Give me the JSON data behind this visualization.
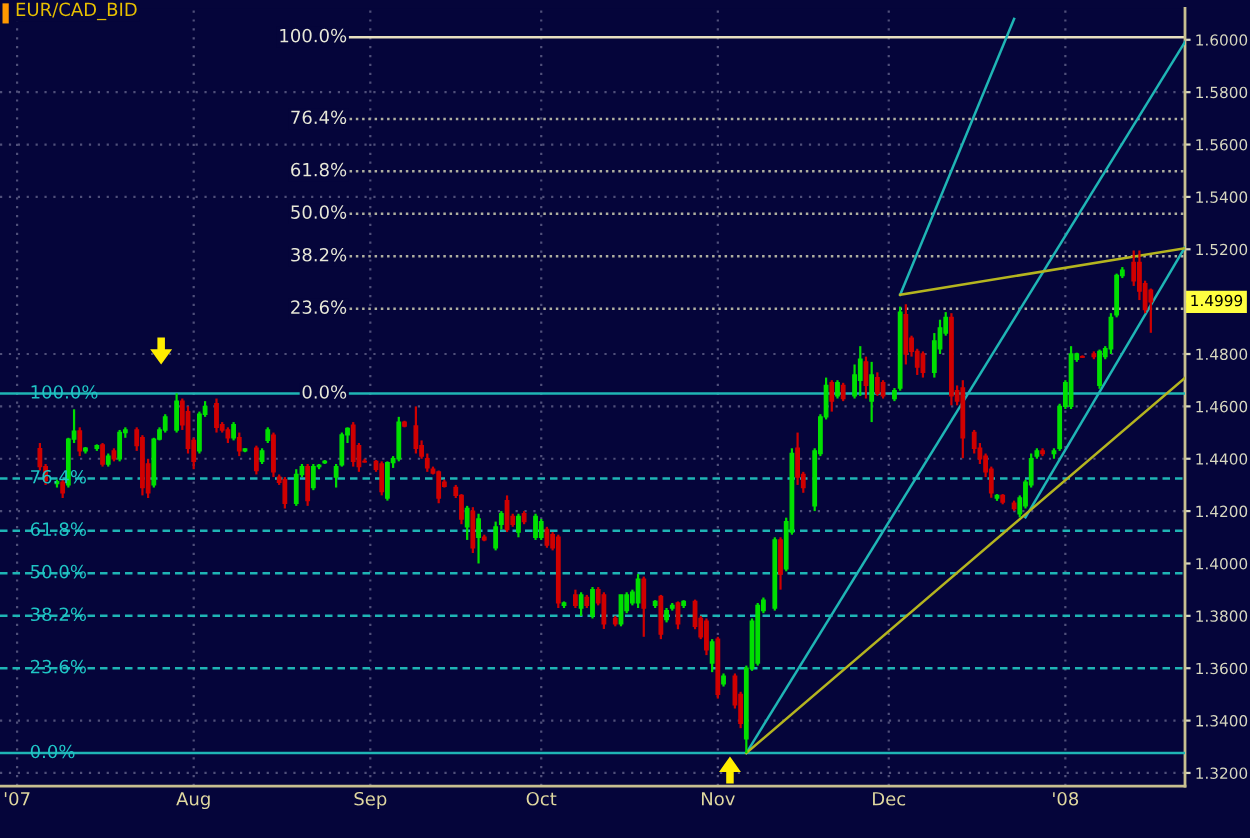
{
  "chart_data": {
    "type": "candlestick",
    "title": "EUR/CAD_BID",
    "x": [
      "2007-07-05",
      "2007-07-06",
      "2007-07-08",
      "2007-07-09",
      "2007-07-10",
      "2007-07-11",
      "2007-07-12",
      "2007-07-13",
      "2007-07-15",
      "2007-07-16",
      "2007-07-17",
      "2007-07-18",
      "2007-07-19",
      "2007-07-20",
      "2007-07-22",
      "2007-07-23",
      "2007-07-24",
      "2007-07-25",
      "2007-07-26",
      "2007-07-27",
      "2007-07-29",
      "2007-07-30",
      "2007-07-31",
      "2007-08-01",
      "2007-08-02",
      "2007-08-03",
      "2007-08-05",
      "2007-08-06",
      "2007-08-07",
      "2007-08-08",
      "2007-08-09",
      "2007-08-10",
      "2007-08-12",
      "2007-08-13",
      "2007-08-14",
      "2007-08-15",
      "2007-08-16",
      "2007-08-17",
      "2007-08-19",
      "2007-08-20",
      "2007-08-21",
      "2007-08-22",
      "2007-08-23",
      "2007-08-24",
      "2007-08-26",
      "2007-08-27",
      "2007-08-28",
      "2007-08-29",
      "2007-08-30",
      "2007-08-31",
      "2007-09-02",
      "2007-09-03",
      "2007-09-04",
      "2007-09-05",
      "2007-09-06",
      "2007-09-07",
      "2007-09-09",
      "2007-09-10",
      "2007-09-11",
      "2007-09-12",
      "2007-09-13",
      "2007-09-14",
      "2007-09-16",
      "2007-09-17",
      "2007-09-18",
      "2007-09-19",
      "2007-09-20",
      "2007-09-21",
      "2007-09-23",
      "2007-09-24",
      "2007-09-25",
      "2007-09-26",
      "2007-09-27",
      "2007-09-28",
      "2007-09-30",
      "2007-10-01",
      "2007-10-02",
      "2007-10-03",
      "2007-10-04",
      "2007-10-05",
      "2007-10-07",
      "2007-10-08",
      "2007-10-09",
      "2007-10-10",
      "2007-10-11",
      "2007-10-12",
      "2007-10-14",
      "2007-10-15",
      "2007-10-16",
      "2007-10-17",
      "2007-10-18",
      "2007-10-19",
      "2007-10-21",
      "2007-10-22",
      "2007-10-23",
      "2007-10-24",
      "2007-10-25",
      "2007-10-26",
      "2007-10-28",
      "2007-10-29",
      "2007-10-30",
      "2007-10-31",
      "2007-11-01",
      "2007-11-02",
      "2007-11-04",
      "2007-11-05",
      "2007-11-06",
      "2007-11-07",
      "2007-11-08",
      "2007-11-09",
      "2007-11-11",
      "2007-11-12",
      "2007-11-13",
      "2007-11-14",
      "2007-11-15",
      "2007-11-16",
      "2007-11-18",
      "2007-11-19",
      "2007-11-20",
      "2007-11-21",
      "2007-11-22",
      "2007-11-23",
      "2007-11-25",
      "2007-11-26",
      "2007-11-27",
      "2007-11-28",
      "2007-11-29",
      "2007-11-30",
      "2007-12-02",
      "2007-12-03",
      "2007-12-04",
      "2007-12-05",
      "2007-12-06",
      "2007-12-07",
      "2007-12-09",
      "2007-12-10",
      "2007-12-11",
      "2007-12-12",
      "2007-12-13",
      "2007-12-14",
      "2007-12-16",
      "2007-12-17",
      "2007-12-18",
      "2007-12-19",
      "2007-12-20",
      "2007-12-21",
      "2007-12-23",
      "2007-12-24",
      "2007-12-25",
      "2007-12-26",
      "2007-12-27",
      "2007-12-28",
      "2007-12-30",
      "2007-12-31",
      "2008-01-01",
      "2008-01-02",
      "2008-01-03",
      "2008-01-04",
      "2008-01-06",
      "2008-01-07",
      "2008-01-08",
      "2008-01-09",
      "2008-01-10",
      "2008-01-11",
      "2008-01-13",
      "2008-01-14",
      "2008-01-15",
      "2008-01-16"
    ],
    "ohlc": [
      [
        1.4438,
        1.446,
        1.4355,
        1.437
      ],
      [
        1.437,
        1.438,
        1.43,
        1.4317
      ],
      [
        1.4305,
        1.432,
        1.429,
        1.4312
      ],
      [
        1.431,
        1.432,
        1.425,
        1.427
      ],
      [
        1.43,
        1.448,
        1.429,
        1.4475
      ],
      [
        1.4475,
        1.4589,
        1.446,
        1.4505
      ],
      [
        1.4506,
        1.452,
        1.441,
        1.443
      ],
      [
        1.443,
        1.4445,
        1.442,
        1.444
      ],
      [
        1.444,
        1.4455,
        1.443,
        1.445
      ],
      [
        1.4453,
        1.446,
        1.437,
        1.438
      ],
      [
        1.438,
        1.442,
        1.437,
        1.441
      ],
      [
        1.443,
        1.444,
        1.439,
        1.44
      ],
      [
        1.44,
        1.451,
        1.439,
        1.45
      ],
      [
        1.45,
        1.452,
        1.448,
        1.451
      ],
      [
        1.451,
        1.452,
        1.443,
        1.445
      ],
      [
        1.448,
        1.449,
        1.426,
        1.429
      ],
      [
        1.438,
        1.44,
        1.425,
        1.427
      ],
      [
        1.43,
        1.448,
        1.429,
        1.4475
      ],
      [
        1.4475,
        1.452,
        1.447,
        1.451
      ],
      [
        1.451,
        1.457,
        1.45,
        1.456
      ],
      [
        1.451,
        1.465,
        1.45,
        1.462
      ],
      [
        1.462,
        1.463,
        1.451,
        1.453
      ],
      [
        1.458,
        1.46,
        1.442,
        1.444
      ],
      [
        1.447,
        1.448,
        1.436,
        1.439
      ],
      [
        1.443,
        1.458,
        1.442,
        1.457
      ],
      [
        1.457,
        1.462,
        1.456,
        1.46
      ],
      [
        1.461,
        1.463,
        1.45,
        1.452
      ],
      [
        1.453,
        1.454,
        1.45,
        1.451
      ],
      [
        1.451,
        1.452,
        1.446,
        1.448
      ],
      [
        1.448,
        1.454,
        1.447,
        1.453
      ],
      [
        1.448,
        1.45,
        1.441,
        1.443
      ],
      [
        1.443,
        1.444,
        1.4425,
        1.4437
      ],
      [
        1.444,
        1.445,
        1.434,
        1.4355
      ],
      [
        1.439,
        1.444,
        1.438,
        1.443
      ],
      [
        1.447,
        1.452,
        1.446,
        1.451
      ],
      [
        1.449,
        1.45,
        1.433,
        1.435
      ],
      [
        1.433,
        1.434,
        1.43,
        1.431
      ],
      [
        1.432,
        1.433,
        1.421,
        1.423
      ],
      [
        1.423,
        1.436,
        1.422,
        1.434
      ],
      [
        1.434,
        1.438,
        1.433,
        1.437
      ],
      [
        1.437,
        1.438,
        1.422,
        1.424
      ],
      [
        1.429,
        1.438,
        1.428,
        1.437
      ],
      [
        1.437,
        1.438,
        1.436,
        1.4375
      ],
      [
        1.4385,
        1.4395,
        1.438,
        1.439
      ],
      [
        1.433,
        1.438,
        1.429,
        1.437
      ],
      [
        1.4377,
        1.45,
        1.437,
        1.4491
      ],
      [
        1.4491,
        1.452,
        1.446,
        1.4516
      ],
      [
        1.4528,
        1.454,
        1.437,
        1.439
      ],
      [
        1.445,
        1.446,
        1.435,
        1.437
      ],
      [
        1.439,
        1.44,
        1.4385,
        1.4388
      ],
      [
        1.439,
        1.4395,
        1.435,
        1.436
      ],
      [
        1.438,
        1.439,
        1.426,
        1.4275
      ],
      [
        1.425,
        1.439,
        1.424,
        1.4385
      ],
      [
        1.4385,
        1.441,
        1.4365,
        1.44
      ],
      [
        1.44,
        1.456,
        1.439,
        1.454
      ],
      [
        1.454,
        1.4545,
        1.452,
        1.4525
      ],
      [
        1.4525,
        1.46,
        1.442,
        1.444
      ],
      [
        1.445,
        1.447,
        1.44,
        1.441
      ],
      [
        1.44,
        1.442,
        1.435,
        1.4365
      ],
      [
        1.436,
        1.437,
        1.434,
        1.4345
      ],
      [
        1.435,
        1.4355,
        1.423,
        1.425
      ],
      [
        1.431,
        1.432,
        1.429,
        1.4295
      ],
      [
        1.429,
        1.43,
        1.425,
        1.426
      ],
      [
        1.426,
        1.4265,
        1.415,
        1.417
      ],
      [
        1.414,
        1.422,
        1.409,
        1.421
      ],
      [
        1.42,
        1.4215,
        1.404,
        1.406
      ],
      [
        1.41,
        1.419,
        1.4,
        1.417
      ],
      [
        1.41,
        1.411,
        1.4085,
        1.409
      ],
      [
        1.406,
        1.416,
        1.405,
        1.414
      ],
      [
        1.415,
        1.42,
        1.413,
        1.419
      ],
      [
        1.424,
        1.426,
        1.412,
        1.413
      ],
      [
        1.418,
        1.419,
        1.414,
        1.415
      ],
      [
        1.412,
        1.419,
        1.41,
        1.418
      ],
      [
        1.419,
        1.42,
        1.415,
        1.416
      ],
      [
        1.41,
        1.419,
        1.409,
        1.418
      ],
      [
        1.41,
        1.417,
        1.409,
        1.416
      ],
      [
        1.413,
        1.414,
        1.406,
        1.407
      ],
      [
        1.411,
        1.412,
        1.405,
        1.406
      ],
      [
        1.41,
        1.411,
        1.383,
        1.385
      ],
      [
        1.384,
        1.3855,
        1.383,
        1.3849
      ],
      [
        1.388,
        1.39,
        1.383,
        1.384
      ],
      [
        1.383,
        1.389,
        1.38,
        1.388
      ],
      [
        1.387,
        1.388,
        1.383,
        1.384
      ],
      [
        1.38,
        1.391,
        1.379,
        1.39
      ],
      [
        1.39,
        1.391,
        1.384,
        1.385
      ],
      [
        1.388,
        1.389,
        1.375,
        1.377
      ],
      [
        1.379,
        1.38,
        1.376,
        1.377
      ],
      [
        1.377,
        1.388,
        1.376,
        1.388
      ],
      [
        1.382,
        1.389,
        1.381,
        1.388
      ],
      [
        1.385,
        1.39,
        1.384,
        1.389
      ],
      [
        1.385,
        1.396,
        1.383,
        1.394
      ],
      [
        1.394,
        1.395,
        1.372,
        1.383
      ],
      [
        1.384,
        1.386,
        1.383,
        1.3855
      ],
      [
        1.3874,
        1.388,
        1.3711,
        1.373
      ],
      [
        1.3786,
        1.383,
        1.3775,
        1.382
      ],
      [
        1.383,
        1.3849,
        1.382,
        1.384
      ],
      [
        1.3849,
        1.3855,
        1.3749,
        1.377
      ],
      [
        1.384,
        1.386,
        1.383,
        1.3855
      ],
      [
        1.3855,
        1.3862,
        1.3749,
        1.376
      ],
      [
        1.379,
        1.38,
        1.3711,
        1.372
      ],
      [
        1.378,
        1.379,
        1.365,
        1.367
      ],
      [
        1.362,
        1.3711,
        1.3585,
        1.37
      ],
      [
        1.3711,
        1.372,
        1.3484,
        1.35
      ],
      [
        1.354,
        1.358,
        1.353,
        1.357
      ],
      [
        1.357,
        1.358,
        1.3446,
        1.346
      ],
      [
        1.35,
        1.351,
        1.3371,
        1.339
      ],
      [
        1.333,
        1.361,
        1.3276,
        1.36
      ],
      [
        1.36,
        1.379,
        1.359,
        1.378
      ],
      [
        1.362,
        1.3849,
        1.361,
        1.384
      ],
      [
        1.382,
        1.387,
        1.381,
        1.386
      ],
      [
        1.383,
        1.41,
        1.382,
        1.409
      ],
      [
        1.409,
        1.41,
        1.39,
        1.396
      ],
      [
        1.398,
        1.4175,
        1.397,
        1.416
      ],
      [
        1.412,
        1.444,
        1.411,
        1.442
      ],
      [
        1.444,
        1.45,
        1.43,
        1.433
      ],
      [
        1.434,
        1.435,
        1.427,
        1.429
      ],
      [
        1.422,
        1.444,
        1.42,
        1.443
      ],
      [
        1.442,
        1.457,
        1.441,
        1.456
      ],
      [
        1.456,
        1.471,
        1.455,
        1.468
      ],
      [
        1.469,
        1.47,
        1.458,
        1.462
      ],
      [
        1.464,
        1.47,
        1.463,
        1.469
      ],
      [
        1.468,
        1.469,
        1.462,
        1.463
      ],
      [
        1.464,
        1.476,
        1.463,
        1.472
      ],
      [
        1.47,
        1.483,
        1.464,
        1.478
      ],
      [
        1.477,
        1.479,
        1.463,
        1.468
      ],
      [
        1.462,
        1.477,
        1.454,
        1.472
      ],
      [
        1.471,
        1.473,
        1.464,
        1.465
      ],
      [
        1.469,
        1.47,
        1.463,
        1.464
      ],
      [
        1.463,
        1.467,
        1.462,
        1.466
      ],
      [
        1.467,
        1.4981,
        1.466,
        1.496
      ],
      [
        1.495,
        1.499,
        1.476,
        1.48
      ],
      [
        1.486,
        1.487,
        1.479,
        1.481
      ],
      [
        1.481,
        1.482,
        1.472,
        1.475
      ],
      [
        1.48,
        1.481,
        1.471,
        1.473
      ],
      [
        1.473,
        1.488,
        1.471,
        1.485
      ],
      [
        1.482,
        1.4931,
        1.48,
        1.49
      ],
      [
        1.488,
        1.496,
        1.487,
        1.494
      ],
      [
        1.494,
        1.4956,
        1.4604,
        1.464
      ],
      [
        1.466,
        1.468,
        1.4604,
        1.462
      ],
      [
        1.467,
        1.47,
        1.4402,
        1.448
      ],
      [
        1.45,
        1.451,
        1.442,
        1.444
      ],
      [
        1.444,
        1.446,
        1.438,
        1.44
      ],
      [
        1.441,
        1.442,
        1.433,
        1.435
      ],
      [
        1.436,
        1.437,
        1.4251,
        1.427
      ],
      [
        1.425,
        1.4265,
        1.4239,
        1.426
      ],
      [
        1.426,
        1.4265,
        1.4226,
        1.4235
      ],
      [
        1.423,
        1.424,
        1.4201,
        1.421
      ],
      [
        1.419,
        1.426,
        1.4176,
        1.425
      ],
      [
        1.422,
        1.432,
        1.421,
        1.431
      ],
      [
        1.43,
        1.442,
        1.429,
        1.44
      ],
      [
        1.441,
        1.444,
        1.44,
        1.443
      ],
      [
        1.443,
        1.444,
        1.441,
        1.442
      ],
      [
        1.442,
        1.444,
        1.44,
        1.443
      ],
      [
        1.444,
        1.461,
        1.443,
        1.46
      ],
      [
        1.46,
        1.47,
        1.459,
        1.469
      ],
      [
        1.46,
        1.483,
        1.459,
        1.48
      ],
      [
        1.478,
        1.4805,
        1.477,
        1.48
      ],
      [
        1.479,
        1.4795,
        1.4785,
        1.4788
      ],
      [
        1.48,
        1.481,
        1.478,
        1.479
      ],
      [
        1.468,
        1.4817,
        1.4667,
        1.481
      ],
      [
        1.479,
        1.483,
        1.478,
        1.482
      ],
      [
        1.482,
        1.4956,
        1.48,
        1.494
      ],
      [
        1.495,
        1.5107,
        1.494,
        1.51
      ],
      [
        1.51,
        1.5132,
        1.509,
        1.512
      ],
      [
        1.515,
        1.5195,
        1.506,
        1.508
      ],
      [
        1.515,
        1.5195,
        1.5006,
        1.504
      ],
      [
        1.5069,
        1.508,
        1.4956,
        1.497
      ],
      [
        1.5044,
        1.505,
        1.4881,
        1.4999
      ]
    ],
    "series": [
      {
        "type": "line",
        "x": [
          "2007-12-03",
          "2007-12-23"
        ],
        "values": [
          1.5026,
          1.608
        ],
        "color": "#1fb5b5"
      },
      {
        "type": "line",
        "x": [
          "2007-11-06",
          "2008-01-22"
        ],
        "values": [
          1.3276,
          1.5992
        ],
        "color": "#1fb5b5"
      },
      {
        "type": "line",
        "x": [
          "2007-12-25",
          "2008-01-22"
        ],
        "values": [
          1.4176,
          1.5208
        ],
        "color": "#1fb5b5"
      },
      {
        "type": "line",
        "x": [
          "2007-11-06",
          "2008-01-22"
        ],
        "values": [
          1.3276,
          1.4709
        ],
        "color": "#b5b51f"
      },
      {
        "type": "line",
        "x": [
          "2007-12-03",
          "2008-01-22"
        ],
        "values": [
          1.5026,
          1.5204
        ],
        "color": "#b5b51f"
      }
    ],
    "ref_lines": [
      {
        "axis": "y",
        "value": 1.4649,
        "color": "#1fb5b5",
        "line_style": "solid"
      },
      {
        "axis": "y",
        "value": 1.4325,
        "color": "#1fb5b5",
        "line_style": "dashed"
      },
      {
        "axis": "y",
        "value": 1.4125,
        "color": "#1fb5b5",
        "line_style": "dashed"
      },
      {
        "axis": "y",
        "value": 1.3963,
        "color": "#1fb5b5",
        "line_style": "dashed"
      },
      {
        "axis": "y",
        "value": 1.38,
        "color": "#1fb5b5",
        "line_style": "dashed"
      },
      {
        "axis": "y",
        "value": 1.36,
        "color": "#1fb5b5",
        "line_style": "dashed"
      },
      {
        "axis": "y",
        "value": 1.3276,
        "color": "#1fb5b5",
        "line_style": "solid"
      },
      {
        "axis": "y",
        "value": 1.601,
        "color": "#e8e0c0",
        "line_style": "solid"
      },
      {
        "axis": "y",
        "value": 1.5698,
        "color": "#b0b0a0",
        "line_style": "dotted"
      },
      {
        "axis": "y",
        "value": 1.5498,
        "color": "#b0b0a0",
        "line_style": "dotted"
      },
      {
        "axis": "y",
        "value": 1.5336,
        "color": "#b0b0a0",
        "line_style": "dotted"
      },
      {
        "axis": "y",
        "value": 1.5173,
        "color": "#b0b0a0",
        "line_style": "dotted"
      },
      {
        "axis": "y",
        "value": 1.4973,
        "color": "#b0b0a0",
        "line_style": "dotted"
      }
    ],
    "annotations": [
      {
        "text": "100.0%",
        "y": 1.4649
      },
      {
        "text": "76.4%",
        "y": 1.4325
      },
      {
        "text": "61.8%",
        "y": 1.4125
      },
      {
        "text": "50.0%",
        "y": 1.3963
      },
      {
        "text": "38.2%",
        "y": 1.38
      },
      {
        "text": "23.6%",
        "y": 1.36
      },
      {
        "text": "0.0%",
        "y": 1.3276
      },
      "100.0%",
      {
        "text": "76.4%",
        "y": 1.5698
      },
      {
        "text": "61.8%",
        "y": 1.5498
      },
      {
        "text": "50.0%",
        "y": 1.5336
      },
      {
        "text": "38.2%",
        "y": 1.5173
      },
      {
        "text": "23.6%",
        "y": 1.4973
      },
      {
        "text": "0.0%",
        "y": 1.4649
      },
      {
        "text": "1.4999",
        "x": "2008-01-16",
        "y": 1.4999
      }
    ],
    "xlim": [
      "2007-06-28",
      "2008-01-22"
    ],
    "xticks": [
      {
        "value": "2007-07-01",
        "label": "'07"
      },
      {
        "value": "2007-08-01",
        "label": "Aug"
      },
      {
        "value": "2007-09-01",
        "label": "Sep"
      },
      {
        "value": "2007-10-01",
        "label": "Oct"
      },
      {
        "value": "2007-11-01",
        "label": "Nov"
      },
      {
        "value": "2007-12-01",
        "label": "Dec"
      },
      {
        "value": "2008-01-01",
        "label": "'08"
      }
    ],
    "ylim": [
      1.315,
      1.612
    ],
    "yticks": [
      {
        "value": 1.32,
        "label": "1.3200"
      },
      {
        "value": 1.34,
        "label": "1.3400"
      },
      {
        "value": 1.36,
        "label": "1.3600"
      },
      {
        "value": 1.38,
        "label": "1.3800"
      },
      {
        "value": 1.4,
        "label": "1.4000"
      },
      {
        "value": 1.42,
        "label": "1.4200"
      },
      {
        "value": 1.44,
        "label": "1.4400"
      },
      {
        "value": 1.46,
        "label": "1.4600"
      },
      {
        "value": 1.48,
        "label": "1.4800"
      },
      {
        "value": 1.5,
        "label": null
      },
      {
        "value": 1.52,
        "label": "1.5200"
      },
      {
        "value": 1.54,
        "label": "1.5400"
      },
      {
        "value": 1.56,
        "label": "1.5600"
      },
      {
        "value": 1.58,
        "label": "1.5800"
      },
      {
        "value": 1.6,
        "label": "1.6000"
      }
    ],
    "grid": true
  }
}
